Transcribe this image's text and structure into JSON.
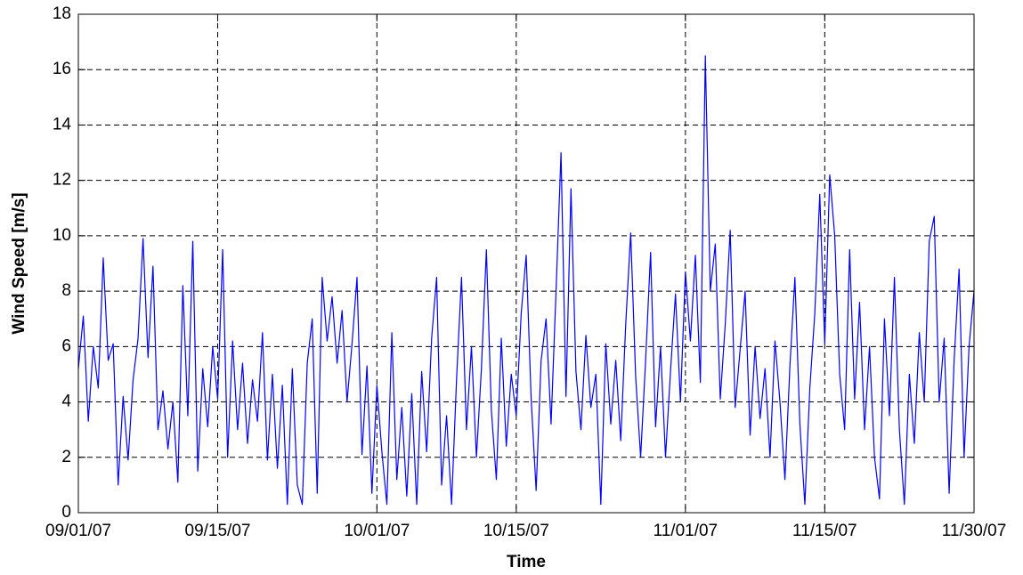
{
  "chart_data": {
    "type": "line",
    "xlabel": "Time",
    "ylabel": "Wind Speed [m/s]",
    "color": "#0000ff",
    "grid": true,
    "xlim": [
      0,
      90
    ],
    "xticks": [
      {
        "value": 0,
        "label": "09/01/07"
      },
      {
        "value": 14,
        "label": "09/15/07"
      },
      {
        "value": 30,
        "label": "10/01/07"
      },
      {
        "value": 44,
        "label": "10/15/07"
      },
      {
        "value": 61,
        "label": "11/01/07"
      },
      {
        "value": 75,
        "label": "11/15/07"
      },
      {
        "value": 90,
        "label": "11/30/07"
      }
    ],
    "ylim": [
      0,
      18
    ],
    "yticks": [
      0,
      2,
      4,
      6,
      8,
      10,
      12,
      14,
      16,
      18
    ],
    "x": [
      0,
      0.5,
      1,
      1.5,
      2,
      2.5,
      3,
      3.5,
      4,
      4.5,
      5,
      5.5,
      6,
      6.5,
      7,
      7.5,
      8,
      8.5,
      9,
      9.5,
      10,
      10.5,
      11,
      11.5,
      12,
      12.5,
      13,
      13.5,
      14,
      14.5,
      15,
      15.5,
      16,
      16.5,
      17,
      17.5,
      18,
      18.5,
      19,
      19.5,
      20,
      20.5,
      21,
      21.5,
      22,
      22.5,
      23,
      23.5,
      24,
      24.5,
      25,
      25.5,
      26,
      26.5,
      27,
      27.5,
      28,
      28.5,
      29,
      29.5,
      30,
      30.5,
      31,
      31.5,
      32,
      32.5,
      33,
      33.5,
      34,
      34.5,
      35,
      35.5,
      36,
      36.5,
      37,
      37.5,
      38,
      38.5,
      39,
      39.5,
      40,
      40.5,
      41,
      41.5,
      42,
      42.5,
      43,
      43.5,
      44,
      44.5,
      45,
      45.5,
      46,
      46.5,
      47,
      47.5,
      48,
      48.5,
      49,
      49.5,
      50,
      50.5,
      51,
      51.5,
      52,
      52.5,
      53,
      53.5,
      54,
      54.5,
      55,
      55.5,
      56,
      56.5,
      57,
      57.5,
      58,
      58.5,
      59,
      59.5,
      60,
      60.5,
      61,
      61.5,
      62,
      62.5,
      63,
      63.5,
      64,
      64.5,
      65,
      65.5,
      66,
      66.5,
      67,
      67.5,
      68,
      68.5,
      69,
      69.5,
      70,
      70.5,
      71,
      71.5,
      72,
      72.5,
      73,
      73.5,
      74,
      74.5,
      75,
      75.5,
      76,
      76.5,
      77,
      77.5,
      78,
      78.5,
      79,
      79.5,
      80,
      80.5,
      81,
      81.5,
      82,
      82.5,
      83,
      83.5,
      84,
      84.5,
      85,
      85.5,
      86,
      86.5,
      87,
      87.5,
      88,
      88.5,
      89,
      89.5,
      90
    ],
    "values": [
      5.2,
      7.1,
      3.3,
      6.0,
      4.5,
      9.2,
      5.5,
      6.1,
      1.0,
      4.2,
      1.9,
      4.8,
      6.3,
      9.9,
      5.6,
      8.9,
      3.0,
      4.4,
      2.3,
      4.0,
      1.1,
      8.2,
      3.5,
      9.8,
      1.5,
      5.2,
      3.1,
      6.0,
      4.1,
      9.5,
      2.0,
      6.2,
      3.0,
      5.4,
      2.5,
      4.8,
      3.3,
      6.5,
      1.9,
      5.0,
      1.6,
      4.6,
      0.3,
      5.2,
      1.0,
      0.3,
      5.4,
      7.0,
      0.7,
      8.5,
      6.2,
      7.8,
      5.4,
      7.3,
      4.0,
      6.1,
      8.5,
      2.1,
      5.3,
      0.7,
      4.6,
      2.2,
      0.3,
      6.5,
      1.2,
      3.8,
      0.6,
      4.3,
      0.3,
      5.1,
      2.2,
      6.3,
      8.5,
      1.0,
      3.5,
      0.3,
      4.8,
      8.5,
      3.0,
      6.0,
      2.0,
      5.2,
      9.5,
      3.7,
      1.2,
      6.3,
      2.4,
      5.0,
      3.5,
      7.2,
      9.3,
      4.1,
      0.8,
      5.5,
      7.0,
      3.2,
      8.0,
      13.0,
      4.2,
      11.7,
      5.1,
      3.0,
      6.4,
      3.8,
      5.0,
      0.3,
      6.1,
      3.2,
      5.5,
      2.6,
      6.8,
      10.1,
      4.9,
      2.0,
      5.5,
      9.4,
      3.1,
      6.0,
      2.0,
      5.1,
      7.9,
      4.0,
      8.7,
      6.2,
      9.3,
      4.7,
      16.5,
      8.0,
      9.7,
      4.1,
      6.8,
      10.2,
      3.8,
      5.9,
      8.0,
      2.8,
      6.0,
      3.4,
      5.2,
      2.0,
      6.2,
      4.0,
      1.2,
      5.3,
      8.5,
      3.2,
      0.3,
      4.5,
      7.2,
      11.5,
      6.1,
      12.2,
      10.0,
      5.0,
      3.0,
      9.5,
      4.1,
      7.6,
      3.0,
      6.0,
      2.0,
      0.5,
      7.0,
      3.5,
      8.5,
      3.0,
      0.3,
      5.0,
      2.5,
      6.5,
      4.0,
      9.8,
      10.7,
      4.0,
      6.3,
      0.7,
      5.5,
      8.8,
      2.0,
      6.0,
      8.0
    ]
  }
}
